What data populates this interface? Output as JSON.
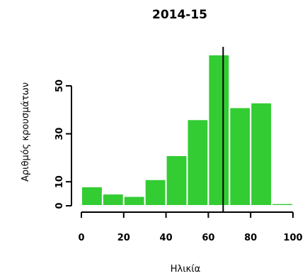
{
  "chart_data": {
    "type": "bar",
    "title": "2014-15",
    "xlabel": "Ηλικία",
    "ylabel": "Αριθμός κρουσμάτων",
    "bin_edges": [
      0,
      10,
      20,
      30,
      40,
      50,
      60,
      70,
      80,
      90,
      100
    ],
    "values": [
      8,
      5,
      4,
      11,
      21,
      36,
      63,
      41,
      43,
      1
    ],
    "xlim": [
      0,
      100
    ],
    "ylim": [
      0,
      63
    ],
    "x_ticks": [
      0,
      20,
      40,
      60,
      80,
      100
    ],
    "y_ticks": [
      0,
      10,
      30,
      50
    ],
    "reference_line_x": 67,
    "bar_color": "#33cc33",
    "line_color": "#000000",
    "grid": false,
    "legend": "none"
  }
}
